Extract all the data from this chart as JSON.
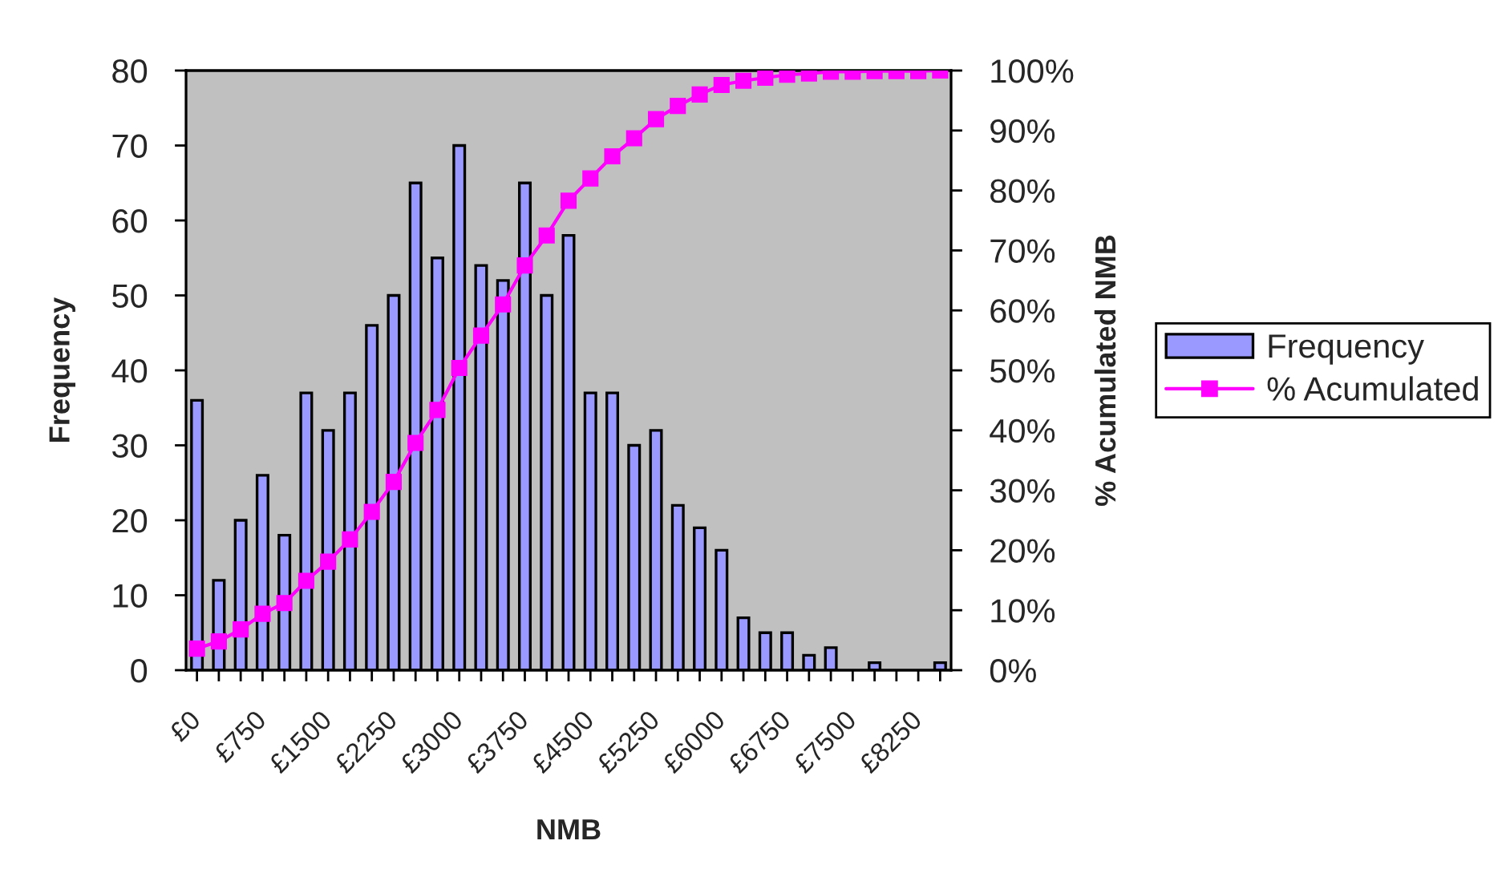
{
  "chart_data": {
    "type": "bar",
    "xlabel": "NMB",
    "ylabel": "Frequency",
    "y2label": "% Acumulated NMB",
    "categories": [
      "£0",
      null,
      null,
      "£750",
      null,
      null,
      "£1500",
      null,
      null,
      "£2250",
      null,
      null,
      "£3000",
      null,
      null,
      "£3750",
      null,
      null,
      "£4500",
      null,
      null,
      "£5250",
      null,
      null,
      "£6000",
      null,
      null,
      "£6750",
      null,
      null,
      "£7500",
      null,
      null,
      "£8250",
      null
    ],
    "series": [
      {
        "name": "Frequency",
        "color": "#9999ff",
        "values": [
          36,
          12,
          20,
          26,
          18,
          37,
          32,
          37,
          46,
          50,
          65,
          55,
          70,
          54,
          52,
          65,
          50,
          58,
          37,
          37,
          30,
          32,
          22,
          19,
          16,
          7,
          5,
          5,
          2,
          3,
          null,
          1,
          null,
          null,
          1
        ]
      },
      {
        "name": "% Acumulated",
        "type": "line",
        "axis": "y2",
        "color": "#ff00ff",
        "marker": "square",
        "line_style": "solid",
        "values": [
          3.6,
          4.8,
          6.8,
          9.4,
          11.2,
          14.9,
          18.1,
          21.8,
          26.4,
          31.4,
          37.9,
          43.4,
          50.4,
          55.8,
          61.0,
          67.5,
          72.5,
          78.3,
          82.0,
          85.7,
          88.7,
          91.9,
          94.1,
          96.0,
          97.6,
          98.3,
          98.8,
          99.3,
          99.5,
          99.8,
          99.8,
          99.9,
          99.9,
          99.9,
          100
        ]
      }
    ],
    "ylim": [
      0,
      80
    ],
    "yticks": [
      0,
      10,
      20,
      30,
      40,
      50,
      60,
      70,
      80
    ],
    "y2lim": [
      0,
      100
    ],
    "y2ticks": [
      {
        "value": 0,
        "label": "0%"
      },
      {
        "value": 10,
        "label": "10%"
      },
      {
        "value": 20,
        "label": "20%"
      },
      {
        "value": 30,
        "label": "30%"
      },
      {
        "value": 40,
        "label": "40%"
      },
      {
        "value": 50,
        "label": "50%"
      },
      {
        "value": 60,
        "label": "60%"
      },
      {
        "value": 70,
        "label": "70%"
      },
      {
        "value": 80,
        "label": "80%"
      },
      {
        "value": 90,
        "label": "90%"
      },
      {
        "value": 100,
        "label": "100%"
      }
    ],
    "grid": false,
    "legend": "right"
  }
}
